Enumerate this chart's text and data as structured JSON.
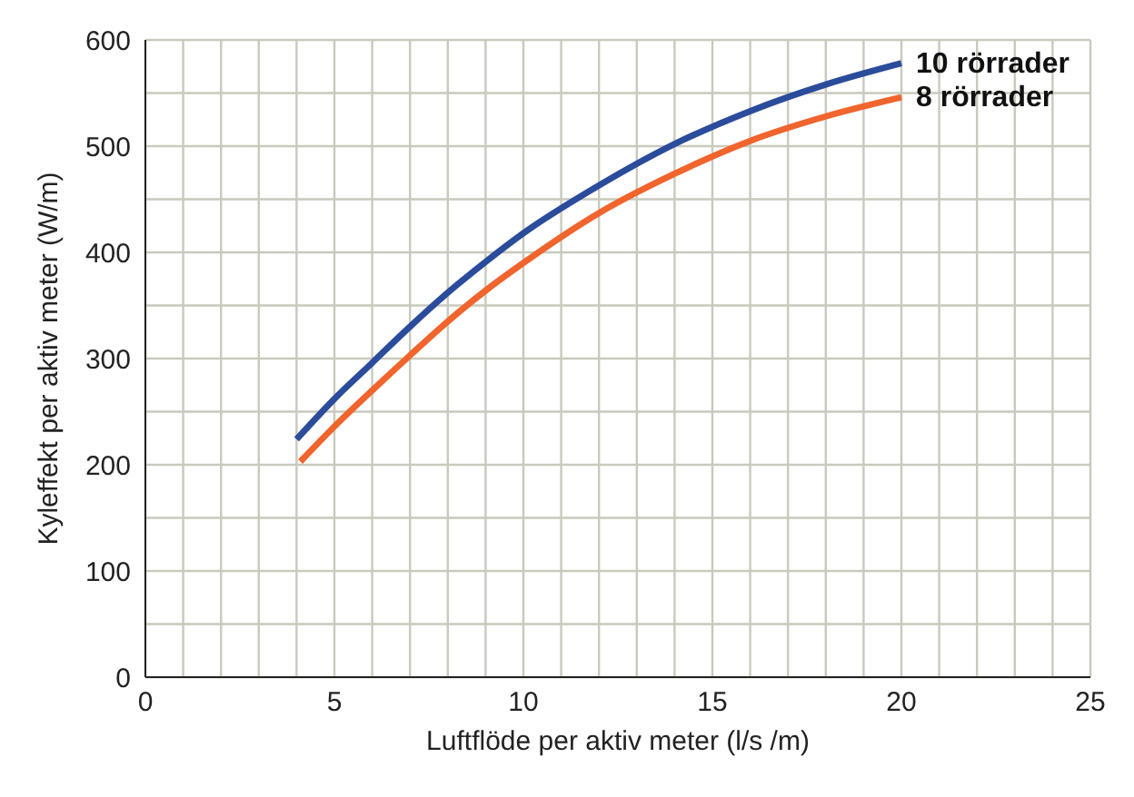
{
  "chart_data": {
    "type": "line",
    "xlabel": "Luftflöde per aktiv meter (l/s /m)",
    "ylabel": "Kyleffekt per aktiv meter (W/m)",
    "xlim": [
      0,
      25
    ],
    "ylim": [
      0,
      600
    ],
    "xticks": [
      0,
      {
        "value": 1,
        "label": null
      },
      {
        "value": 2,
        "label": null
      },
      {
        "value": 3,
        "label": null
      },
      {
        "value": 4,
        "label": null
      },
      5,
      {
        "value": 6,
        "label": null
      },
      {
        "value": 7,
        "label": null
      },
      {
        "value": 8,
        "label": null
      },
      {
        "value": 9,
        "label": null
      },
      10,
      {
        "value": 11,
        "label": null
      },
      {
        "value": 12,
        "label": null
      },
      {
        "value": 13,
        "label": null
      },
      {
        "value": 14,
        "label": null
      },
      15,
      {
        "value": 16,
        "label": null
      },
      {
        "value": 17,
        "label": null
      },
      {
        "value": 18,
        "label": null
      },
      {
        "value": 19,
        "label": null
      },
      20,
      {
        "value": 21,
        "label": null
      },
      {
        "value": 22,
        "label": null
      },
      {
        "value": 23,
        "label": null
      },
      {
        "value": 24,
        "label": null
      },
      25
    ],
    "yticks": [
      0,
      {
        "value": 50,
        "label": null
      },
      100,
      {
        "value": 150,
        "label": null
      },
      200,
      {
        "value": 250,
        "label": null
      },
      300,
      {
        "value": 350,
        "label": null
      },
      400,
      {
        "value": 450,
        "label": null
      },
      500,
      {
        "value": 550,
        "label": null
      },
      600
    ],
    "grid": true,
    "legend": false,
    "marker": "none",
    "line_style": "solid",
    "series": [
      {
        "name": "10 rörrader",
        "color": "#2b4c9b",
        "x": [
          4,
          5,
          6,
          7,
          8,
          9,
          10,
          12,
          14,
          16,
          18,
          20
        ],
        "values": [
          224,
          262,
          296,
          330,
          362,
          391,
          418,
          463,
          502,
          533,
          558,
          578
        ]
      },
      {
        "name": "8 rörrader",
        "color": "#f0642d",
        "x": [
          4.1,
          5,
          6,
          7,
          8,
          9,
          10,
          12,
          14,
          16,
          18,
          20
        ],
        "values": [
          203,
          236,
          270,
          303,
          335,
          364,
          390,
          437,
          474,
          505,
          528,
          546
        ]
      }
    ]
  }
}
